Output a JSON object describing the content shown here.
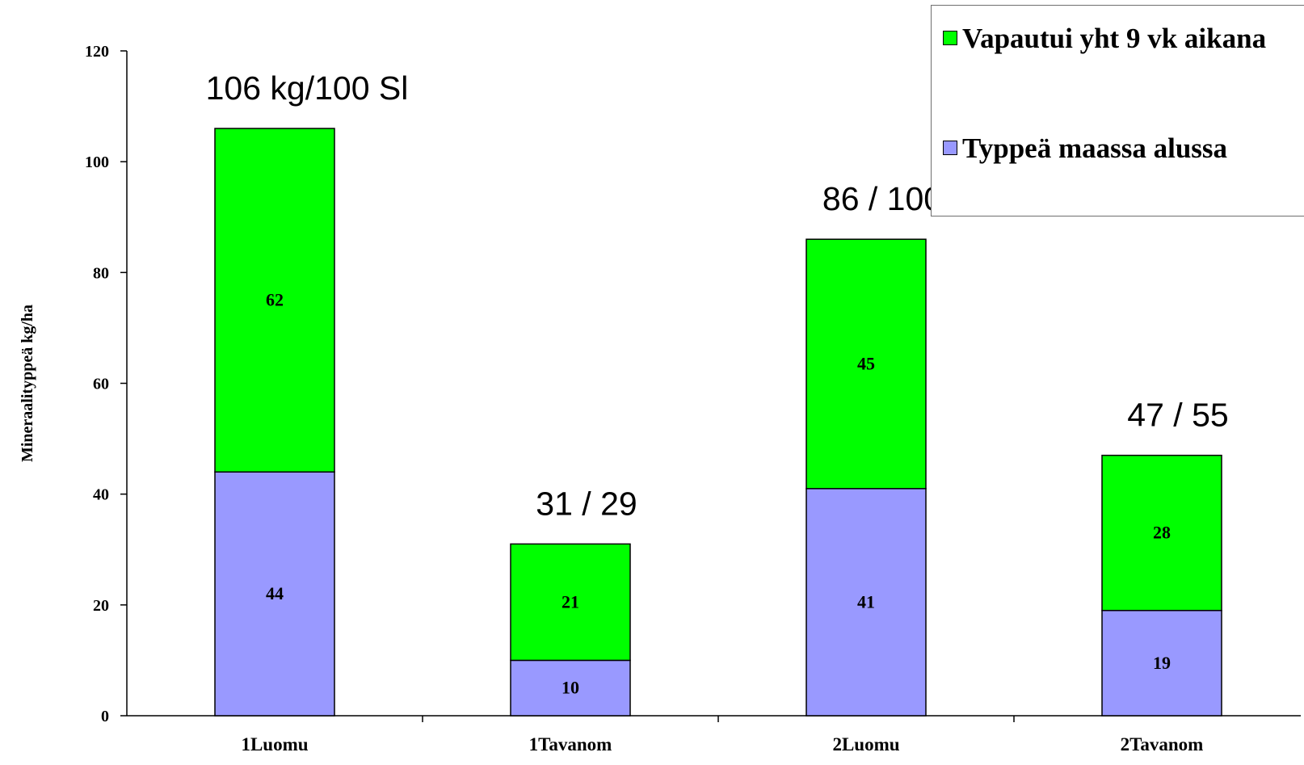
{
  "chart_data": {
    "type": "bar",
    "stacked": true,
    "categories": [
      "1Luomu",
      "1Tavanom",
      "2Luomu",
      "2Tavanom"
    ],
    "series": [
      {
        "name": "Typpeä maassa alussa",
        "color": "#9999ff",
        "values": [
          44,
          10,
          41,
          19
        ]
      },
      {
        "name": "Vapautui yht 9 vk aikana",
        "color": "#00ff00",
        "values": [
          62,
          21,
          45,
          28
        ]
      }
    ],
    "annotations": [
      "106 kg/100 Sl",
      "31 / 29",
      "86 / 100",
      "47 / 55"
    ],
    "ylabel": "Mineraalityppeä kg/ha",
    "ylim": [
      0,
      120
    ],
    "yticks": [
      0,
      20,
      40,
      60,
      80,
      100,
      120
    ],
    "grid": false,
    "legend_position": "top-right",
    "legend_order": [
      1,
      0
    ]
  }
}
